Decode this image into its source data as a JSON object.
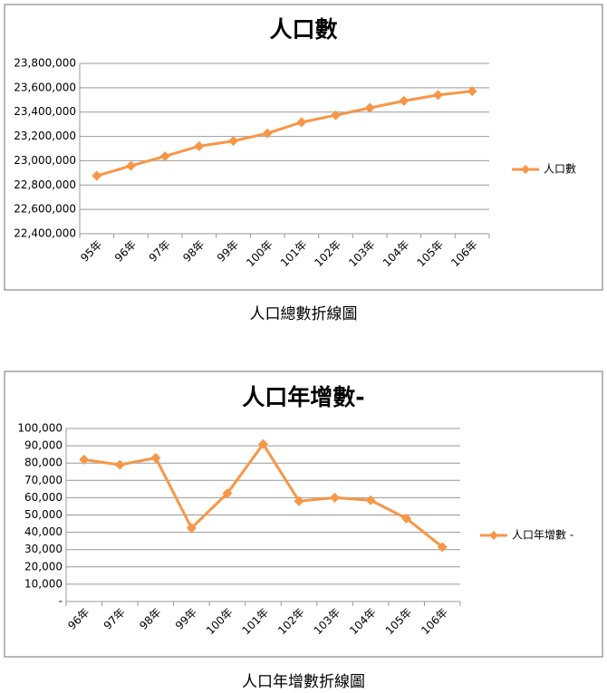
{
  "chart_data": [
    {
      "type": "line",
      "title": "人口數",
      "caption": "人口總數折線圖",
      "categories": [
        "95年",
        "96年",
        "97年",
        "98年",
        "99年",
        "100年",
        "101年",
        "102年",
        "103年",
        "104年",
        "105年",
        "106年"
      ],
      "series": [
        {
          "name": "人口數",
          "color": "#f79646",
          "values": [
            22876000,
            22958000,
            23037000,
            23120000,
            23162000,
            23225000,
            23316000,
            23374000,
            23434000,
            23492000,
            23540000,
            23572000
          ]
        }
      ],
      "ylim": [
        22400000,
        23800000
      ],
      "yticks": [
        {
          "value": 22400000,
          "label": "22,400,000"
        },
        {
          "value": 22600000,
          "label": "22,600,000"
        },
        {
          "value": 22800000,
          "label": "22,800,000"
        },
        {
          "value": 23000000,
          "label": "23,000,000"
        },
        {
          "value": 23200000,
          "label": "23,200,000"
        },
        {
          "value": 23400000,
          "label": "23,400,000"
        },
        {
          "value": 23600000,
          "label": "23,600,000"
        },
        {
          "value": 23800000,
          "label": "23,800,000"
        }
      ],
      "grid": true,
      "legend": "right"
    },
    {
      "type": "line",
      "title": "人口年增數-",
      "caption": "人口年增數折線圖",
      "categories": [
        "96年",
        "97年",
        "98年",
        "99年",
        "100年",
        "101年",
        "102年",
        "103年",
        "104年",
        "105年",
        "106年"
      ],
      "series": [
        {
          "name": "人口年增數 -",
          "color": "#f79646",
          "values": [
            82000,
            79000,
            83000,
            42500,
            62500,
            91000,
            58000,
            60000,
            58500,
            48000,
            31500
          ]
        }
      ],
      "ylim": [
        0,
        100000
      ],
      "yticks": [
        {
          "value": 0,
          "label": "-"
        },
        {
          "value": 10000,
          "label": "10,000"
        },
        {
          "value": 20000,
          "label": "20,000"
        },
        {
          "value": 30000,
          "label": "30,000"
        },
        {
          "value": 40000,
          "label": "40,000"
        },
        {
          "value": 50000,
          "label": "50,000"
        },
        {
          "value": 60000,
          "label": "60,000"
        },
        {
          "value": 70000,
          "label": "70,000"
        },
        {
          "value": 80000,
          "label": "80,000"
        },
        {
          "value": 90000,
          "label": "90,000"
        },
        {
          "value": 100000,
          "label": "100,000"
        }
      ],
      "grid": true,
      "legend": "right"
    }
  ]
}
